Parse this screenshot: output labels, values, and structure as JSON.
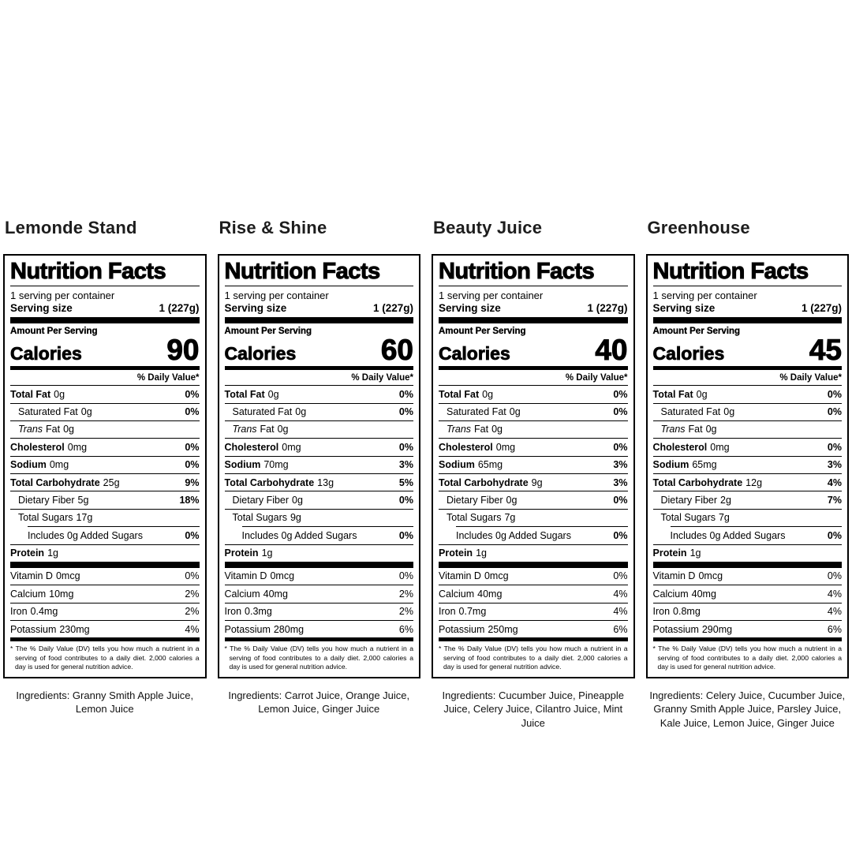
{
  "page": {
    "background": "#ffffff",
    "text_color": "#000000",
    "brand_text_color": "#1d1d1d"
  },
  "shared": {
    "title": "Nutrition Facts",
    "servings_per_container": "1 serving per container",
    "serving_size_label": "Serving size",
    "serving_size_value": "1 (227g)",
    "amount_per_serving": "Amount Per Serving",
    "calories_label": "Calories",
    "daily_value_header": "% Daily Value*",
    "footnote": "* The % Daily Value (DV) tells you how much a nutrient in a serving of food contributes to a daily diet. 2,000 calories a day is used for general nutrition advice."
  },
  "labels": [
    {
      "brand": "Lemonde Stand",
      "calories": "90",
      "rows": [
        {
          "name": "Total Fat",
          "amount": "0g",
          "pct": "0%"
        },
        {
          "name": "Saturated Fat",
          "amount": "0g",
          "pct": "0%"
        },
        {
          "name_italic": "Trans",
          "name": "Fat",
          "amount": "0g"
        },
        {
          "name": "Cholesterol",
          "amount": "0mg",
          "pct": "0%"
        },
        {
          "name": "Sodium",
          "amount": "0mg",
          "pct": "0%"
        },
        {
          "name": "Total Carbohydrate",
          "amount": "25g",
          "pct": "9%"
        },
        {
          "name": "Dietary Fiber",
          "amount": "5g",
          "pct": "18%"
        },
        {
          "name": "Total Sugars",
          "amount": "17g"
        },
        {
          "name": "Includes 0g Added Sugars",
          "pct": "0%"
        },
        {
          "name": "Protein",
          "amount": "1g"
        },
        {
          "name": "Vitamin D",
          "amount": "0mcg",
          "pct": "0%"
        },
        {
          "name": "Calcium",
          "amount": "10mg",
          "pct": "2%"
        },
        {
          "name": "Iron",
          "amount": "0.4mg",
          "pct": "2%"
        },
        {
          "name": "Potassium",
          "amount": "230mg",
          "pct": "4%"
        }
      ],
      "ingredients": "Ingredients: Granny Smith Apple Juice, Lemon Juice"
    },
    {
      "brand": "Rise & Shine",
      "calories": "60",
      "rows": [
        {
          "name": "Total Fat",
          "amount": "0g",
          "pct": "0%"
        },
        {
          "name": "Saturated Fat",
          "amount": "0g",
          "pct": "0%"
        },
        {
          "name_italic": "Trans",
          "name": "Fat",
          "amount": "0g"
        },
        {
          "name": "Cholesterol",
          "amount": "0mg",
          "pct": "0%"
        },
        {
          "name": "Sodium",
          "amount": "70mg",
          "pct": "3%"
        },
        {
          "name": "Total Carbohydrate",
          "amount": "13g",
          "pct": "5%"
        },
        {
          "name": "Dietary Fiber",
          "amount": "0g",
          "pct": "0%"
        },
        {
          "name": "Total Sugars",
          "amount": "9g"
        },
        {
          "name": "Includes 0g Added Sugars",
          "pct": "0%"
        },
        {
          "name": "Protein",
          "amount": "1g"
        },
        {
          "name": "Vitamin D",
          "amount": "0mcg",
          "pct": "0%"
        },
        {
          "name": "Calcium",
          "amount": "40mg",
          "pct": "2%"
        },
        {
          "name": "Iron",
          "amount": "0.3mg",
          "pct": "2%"
        },
        {
          "name": "Potassium",
          "amount": "280mg",
          "pct": "6%"
        }
      ],
      "ingredients": "Ingredients: Carrot Juice, Orange Juice, Lemon Juice, Ginger Juice"
    },
    {
      "brand": "Beauty Juice",
      "calories": "40",
      "rows": [
        {
          "name": "Total Fat",
          "amount": "0g",
          "pct": "0%"
        },
        {
          "name": "Saturated Fat",
          "amount": "0g",
          "pct": "0%"
        },
        {
          "name_italic": "Trans",
          "name": "Fat",
          "amount": "0g"
        },
        {
          "name": "Cholesterol",
          "amount": "0mg",
          "pct": "0%"
        },
        {
          "name": "Sodium",
          "amount": "65mg",
          "pct": "3%"
        },
        {
          "name": "Total Carbohydrate",
          "amount": "9g",
          "pct": "3%"
        },
        {
          "name": "Dietary Fiber",
          "amount": "0g",
          "pct": "0%"
        },
        {
          "name": "Total Sugars",
          "amount": "7g"
        },
        {
          "name": "Includes 0g Added Sugars",
          "pct": "0%"
        },
        {
          "name": "Protein",
          "amount": "1g"
        },
        {
          "name": "Vitamin D",
          "amount": "0mcg",
          "pct": "0%"
        },
        {
          "name": "Calcium",
          "amount": "40mg",
          "pct": "4%"
        },
        {
          "name": "Iron",
          "amount": "0.7mg",
          "pct": "4%"
        },
        {
          "name": "Potassium",
          "amount": "250mg",
          "pct": "6%"
        }
      ],
      "ingredients": "Ingredients: Cucumber Juice, Pineapple Juice, Celery Juice, Cilantro Juice, Mint Juice"
    },
    {
      "brand": "Greenhouse",
      "calories": "45",
      "rows": [
        {
          "name": "Total Fat",
          "amount": "0g",
          "pct": "0%"
        },
        {
          "name": "Saturated Fat",
          "amount": "0g",
          "pct": "0%"
        },
        {
          "name_italic": "Trans",
          "name": "Fat",
          "amount": "0g"
        },
        {
          "name": "Cholesterol",
          "amount": "0mg",
          "pct": "0%"
        },
        {
          "name": "Sodium",
          "amount": "65mg",
          "pct": "3%"
        },
        {
          "name": "Total Carbohydrate",
          "amount": "12g",
          "pct": "4%"
        },
        {
          "name": "Dietary Fiber",
          "amount": "2g",
          "pct": "7%"
        },
        {
          "name": "Total Sugars",
          "amount": "7g"
        },
        {
          "name": "Includes 0g Added Sugars",
          "pct": "0%"
        },
        {
          "name": "Protein",
          "amount": "1g"
        },
        {
          "name": "Vitamin D",
          "amount": "0mcg",
          "pct": "0%"
        },
        {
          "name": "Calcium",
          "amount": "40mg",
          "pct": "4%"
        },
        {
          "name": "Iron",
          "amount": "0.8mg",
          "pct": "4%"
        },
        {
          "name": "Potassium",
          "amount": "290mg",
          "pct": "6%"
        }
      ],
      "ingredients": "Ingredients: Celery Juice, Cucumber Juice, Granny Smith Apple Juice, Parsley Juice, Kale Juice, Lemon Juice, Ginger Juice"
    }
  ]
}
